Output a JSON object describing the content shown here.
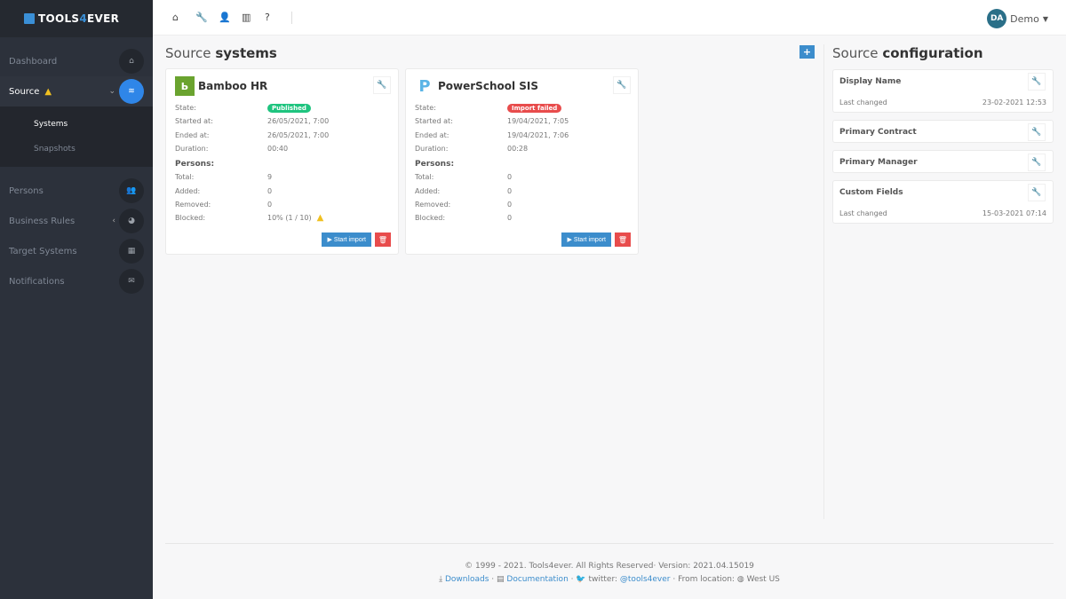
{
  "brand": {
    "pre": "TOOLS",
    "four": "4",
    "post": "EVER"
  },
  "sidebar": {
    "items": [
      {
        "label": "Dashboard",
        "icon": "home-icon"
      },
      {
        "label": "Source",
        "icon": "database-icon",
        "active": true
      },
      {
        "label": "Persons",
        "icon": "users-icon"
      },
      {
        "label": "Business Rules",
        "icon": "pie-chart-icon"
      },
      {
        "label": "Target Systems",
        "icon": "grid-icon"
      },
      {
        "label": "Notifications",
        "icon": "envelope-icon"
      }
    ],
    "submenu": [
      "Systems",
      "Snapshots"
    ]
  },
  "topbar": {
    "icons": [
      "home-icon",
      "wrench-icon",
      "user-icon",
      "bar-chart-icon",
      "question-icon"
    ],
    "user_initials": "DA",
    "user_name": "Demo"
  },
  "source_systems": {
    "title_light": "Source",
    "title_bold": "systems",
    "labels": {
      "state": "State:",
      "started": "Started at:",
      "ended": "Ended at:",
      "duration": "Duration:",
      "persons": "Persons:",
      "total": "Total:",
      "added": "Added:",
      "removed": "Removed:",
      "blocked": "Blocked:"
    },
    "start_import": "▶ Start import",
    "cards": [
      {
        "name": "Bamboo HR",
        "state": "Published",
        "state_color": "#1fc47f",
        "started": "26/05/2021, 7:00",
        "ended": "26/05/2021, 7:00",
        "duration": "00:40",
        "total": "9",
        "added": "0",
        "removed": "0",
        "blocked": "10% (1 / 10)",
        "blocked_warning": true
      },
      {
        "name": "PowerSchool SIS",
        "state": "Import failed",
        "state_color": "#e84c4c",
        "started": "19/04/2021, 7:05",
        "ended": "19/04/2021, 7:06",
        "duration": "00:28",
        "total": "0",
        "added": "0",
        "removed": "0",
        "blocked": "0"
      }
    ]
  },
  "source_config": {
    "title_light": "Source",
    "title_bold": "configuration",
    "last_changed_label": "Last changed",
    "items": [
      {
        "title": "Display Name",
        "last_changed": "23-02-2021 12:53"
      },
      {
        "title": "Primary Contract"
      },
      {
        "title": "Primary Manager"
      },
      {
        "title": "Custom Fields",
        "last_changed": "15-03-2021 07:14"
      }
    ]
  },
  "footer": {
    "copyright": "© 1999 - 2021. Tools4ever. All Rights Reserved· Version: 2021.04.15019",
    "downloads": "Downloads",
    "documentation": "Documentation",
    "twitter_label": "twitter:",
    "twitter_handle": "@tools4ever",
    "location_label": "From location:",
    "location": "West US"
  }
}
